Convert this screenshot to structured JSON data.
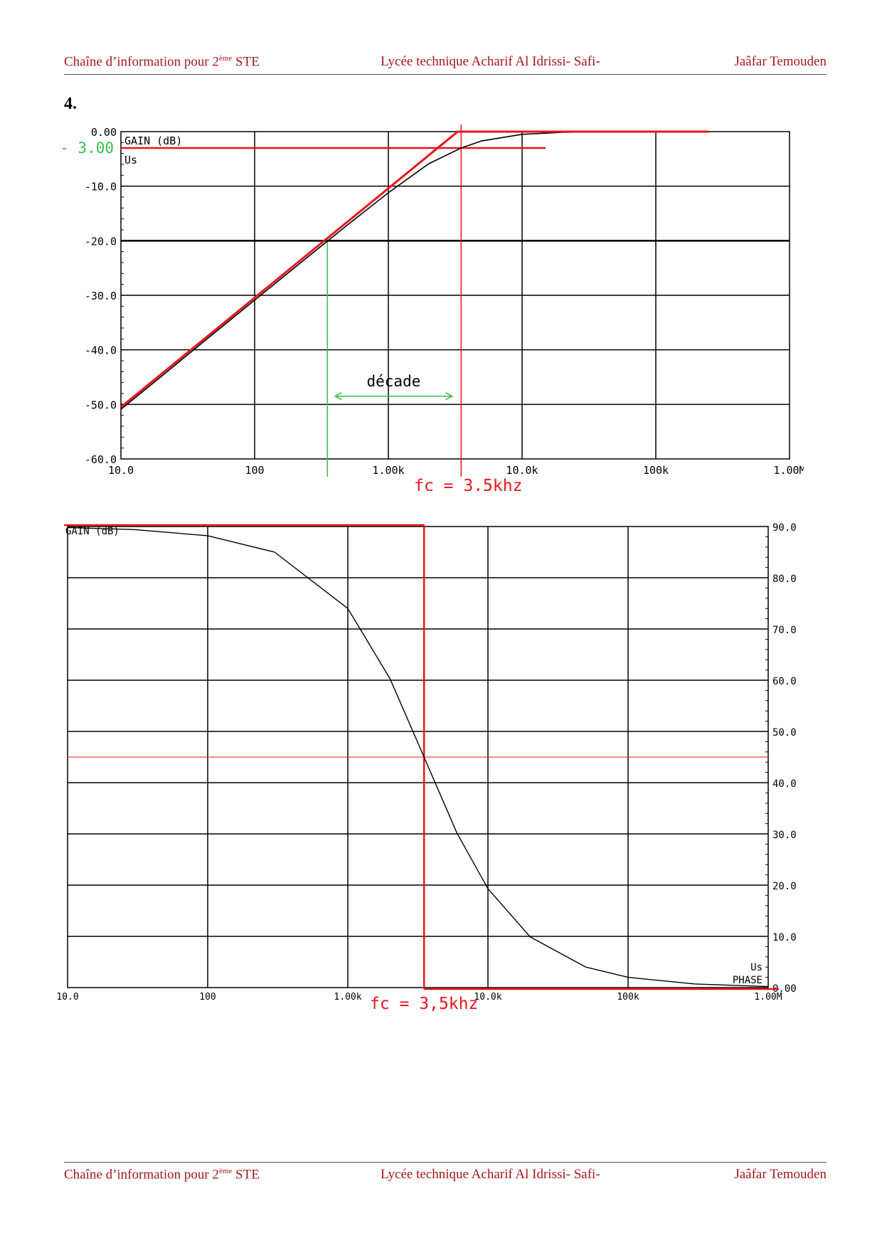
{
  "header": {
    "left_text": "Chaîne d’information pour 2",
    "left_sup": "ème",
    "left_suffix": " STE",
    "center_text": "Lycée technique Acharif Al Idrissi- Safi-",
    "right_text": "Jaâfar Temouden"
  },
  "question_number": "4.",
  "colors": {
    "header_text": "#a3171d",
    "annotation_red": "#e8141c",
    "annotation_green": "#3dbb4a",
    "curve": "#000000",
    "grid": "#000000"
  },
  "chart_data": [
    {
      "type": "line",
      "name": "gain-plot",
      "x_scale": "log",
      "xlim": [
        10,
        1000000
      ],
      "ylim": [
        -60,
        0
      ],
      "x_ticks": [
        10,
        100,
        1000,
        10000,
        100000,
        1000000
      ],
      "x_tick_labels": [
        "10.0",
        "100",
        "1.00k",
        "10.0k",
        "100k",
        "1.00M"
      ],
      "y_ticks": [
        0,
        -10,
        -20,
        -30,
        -40,
        -50,
        -60
      ],
      "y_tick_labels": [
        "0.00",
        "-10.0",
        "-20.0",
        "-30.0",
        "-40.0",
        "-50.0",
        "-60.0"
      ],
      "plot_label": "GAIN (dB)",
      "trace_label": "Us",
      "grid": true,
      "series": [
        {
          "role": "curve",
          "x": [
            10,
            20,
            50,
            100,
            200,
            500,
            1000,
            2000,
            3500,
            5000,
            10000,
            20000,
            30000
          ],
          "y": [
            -50.9,
            -44.9,
            -36.9,
            -30.9,
            -24.9,
            -17.0,
            -11.2,
            -5.9,
            -3.0,
            -1.7,
            -0.5,
            -0.13,
            -0.06
          ]
        },
        {
          "role": "asymptote",
          "x": [
            10,
            3300,
            250000
          ],
          "y": [
            -50.5,
            0,
            0
          ]
        }
      ],
      "annotations": {
        "minus3_label": "- 3.00",
        "minus3_y": -3,
        "minus3_x_end": 15000,
        "fc_x": 3500,
        "fc_label": "fc = 3,5khz",
        "decade_label": "décade",
        "decade_from": 350,
        "decade_to": 3500,
        "decade_arrow_from": 400,
        "decade_arrow_to": 3000
      }
    },
    {
      "type": "line",
      "name": "phase-plot",
      "x_scale": "log",
      "xlim": [
        10,
        1000000
      ],
      "ylim": [
        0,
        90
      ],
      "x_ticks": [
        10,
        100,
        1000,
        10000,
        100000,
        1000000
      ],
      "x_tick_labels": [
        "10.0",
        "100",
        "1.00k",
        "10.0k",
        "100k",
        "1.00M"
      ],
      "y_ticks": [
        90,
        80,
        70,
        60,
        50,
        40,
        30,
        20,
        10,
        0
      ],
      "y_tick_labels": [
        "90.0",
        "80.0",
        "70.0",
        "60.0",
        "50.0",
        "40.0",
        "30.0",
        "20.0",
        "10.0",
        "0.00"
      ],
      "plot_label": "GAIN (dB)",
      "trace_label": "Us",
      "trace_label_2": "PHASE",
      "grid": true,
      "series": [
        {
          "role": "curve",
          "x": [
            10,
            30,
            100,
            300,
            1000,
            2000,
            3500,
            6000,
            10000,
            20000,
            50000,
            100000,
            300000,
            1000000
          ],
          "y": [
            89.8,
            89.4,
            88.2,
            85.0,
            74.0,
            60.3,
            45.0,
            30.2,
            19.3,
            9.9,
            4.0,
            2.0,
            0.7,
            0.2
          ]
        }
      ],
      "annotations": {
        "fc_x": 3500,
        "fc_label": "fc = 3,5khz",
        "phase45_y": 45,
        "top_line_y": 90,
        "bottom_line_y": 0
      }
    }
  ]
}
